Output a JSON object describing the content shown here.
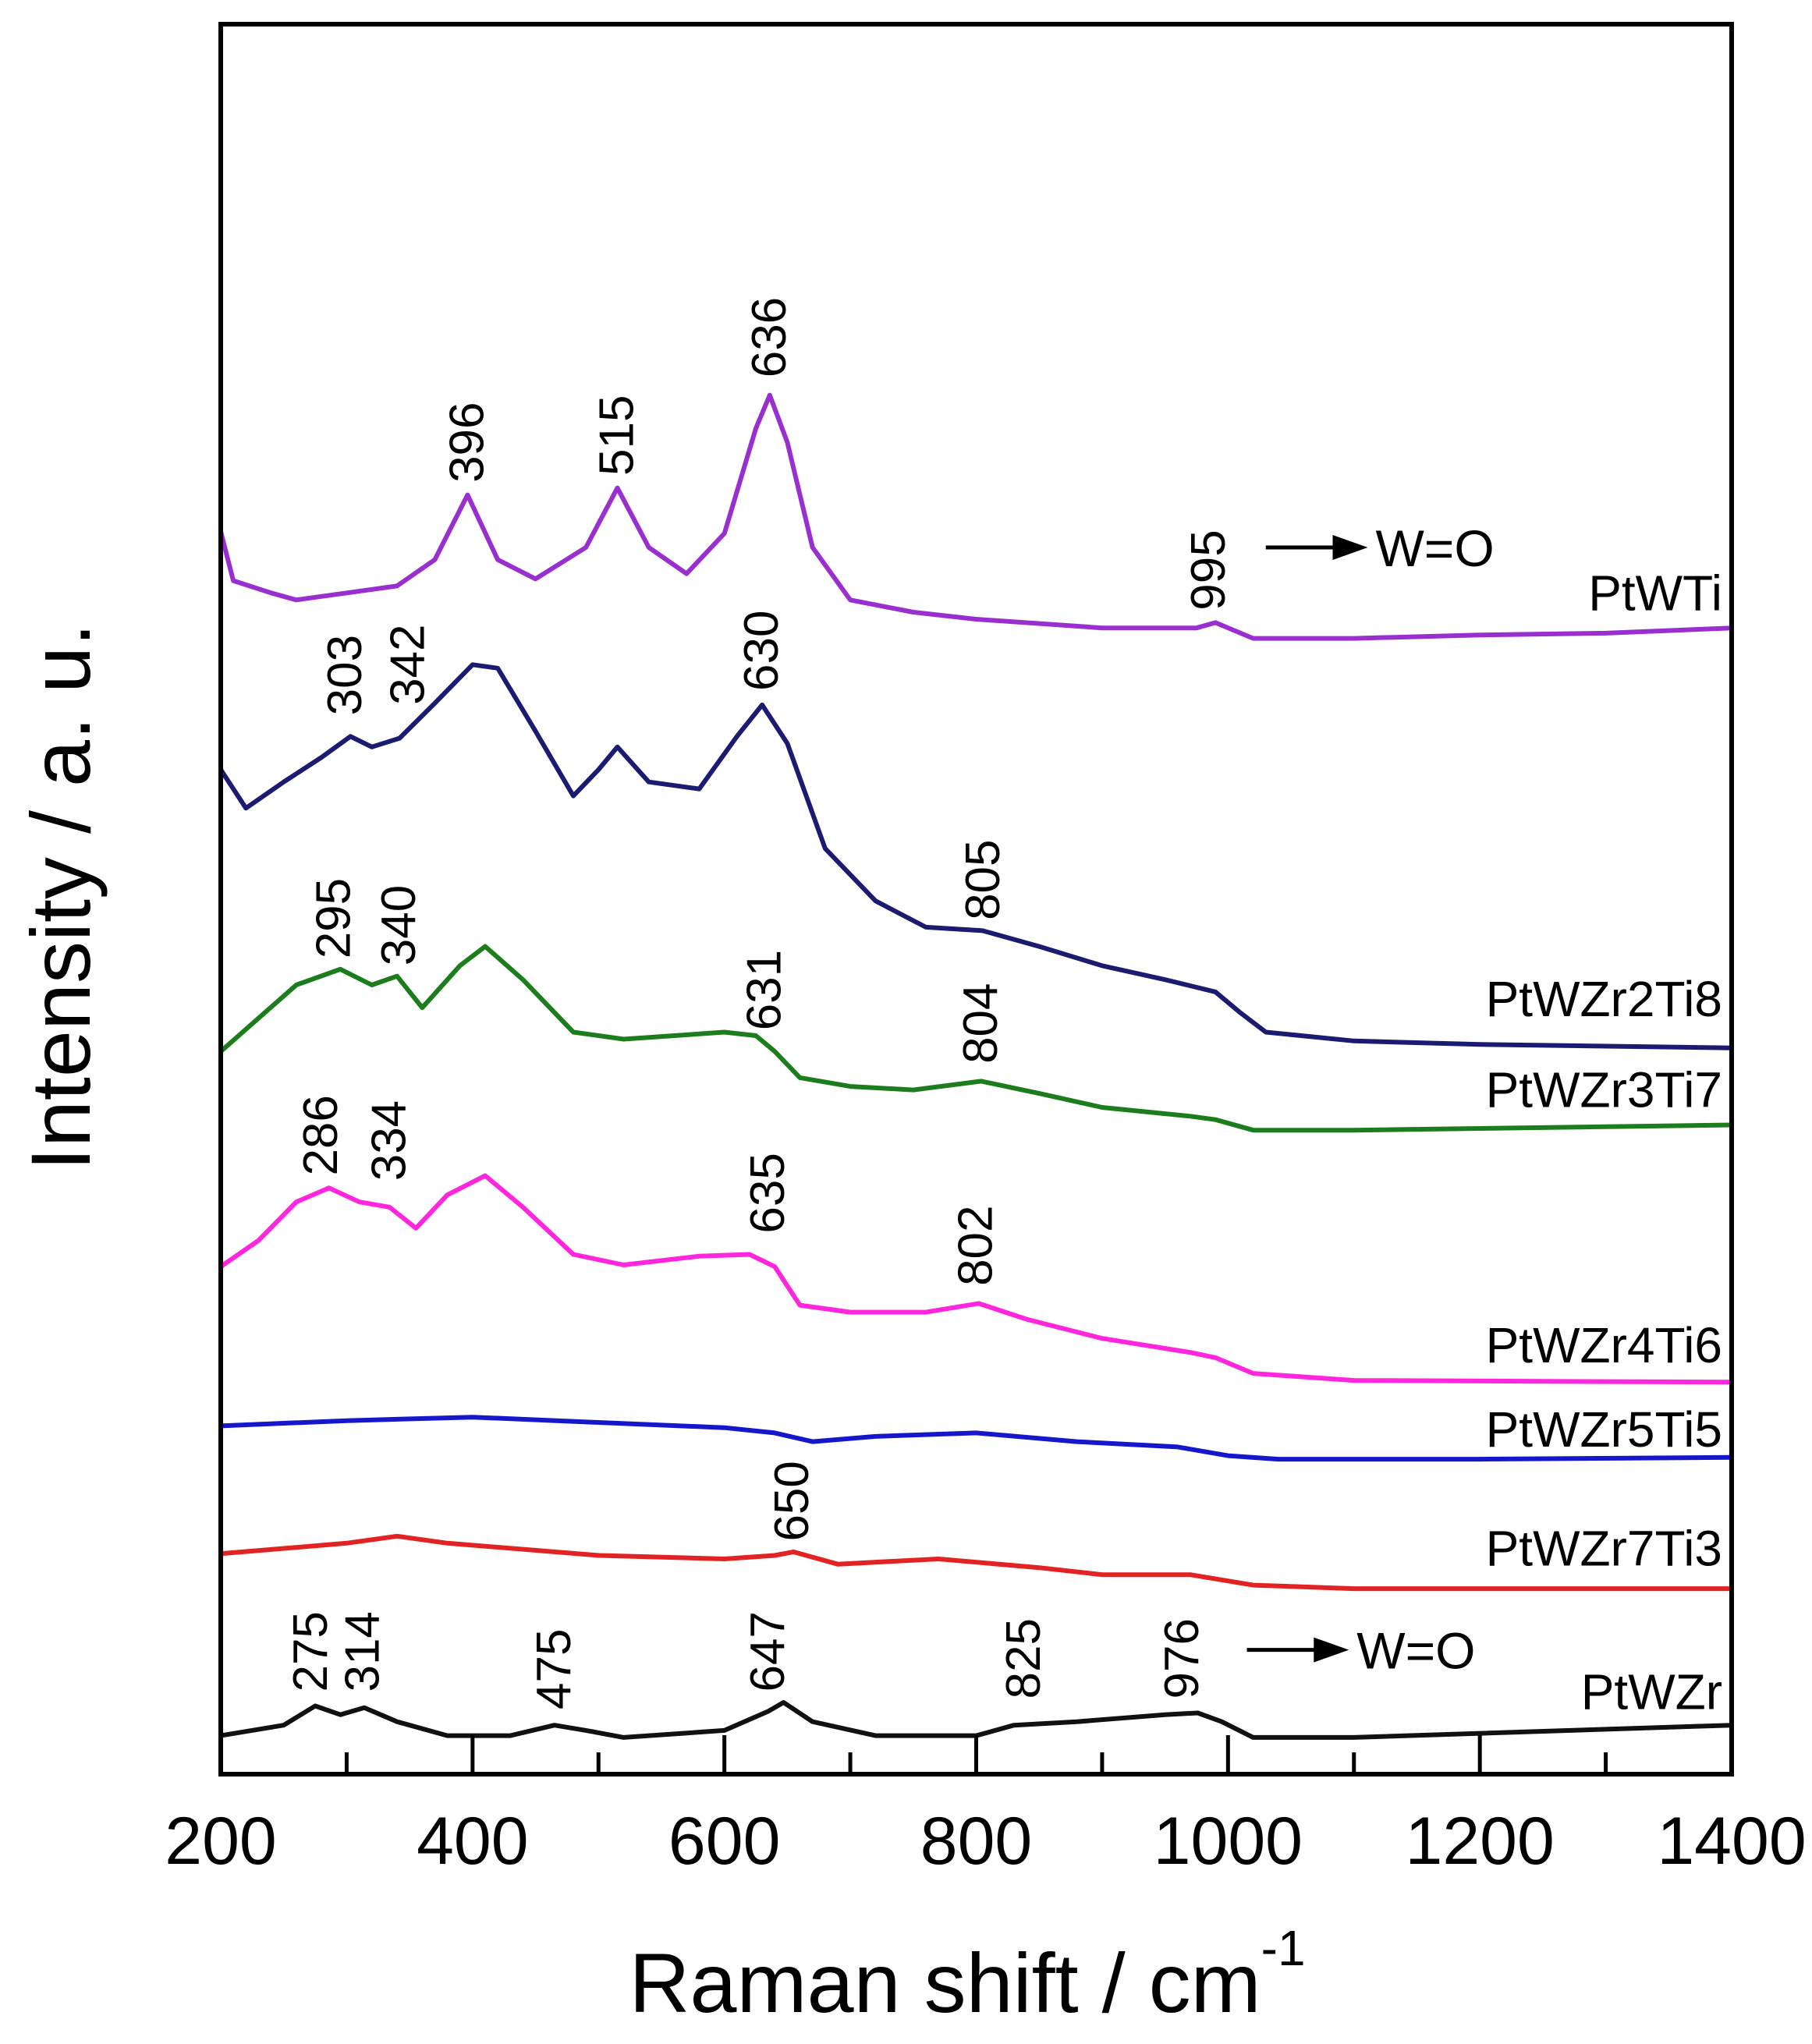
{
  "chart_data": {
    "type": "line",
    "title": "",
    "xlabel": "Raman shift / cm",
    "xlabel_superscript": "-1",
    "ylabel": "Intensity / a. u.",
    "xlim": [
      200,
      1400
    ],
    "ylim": [
      0,
      100
    ],
    "x_ticks": [
      "200",
      "400",
      "600",
      "800",
      "1000",
      "1200",
      "1400"
    ],
    "x_tick_values": [
      200,
      400,
      600,
      800,
      1000,
      1200,
      1400
    ],
    "minor_tick_step": 100,
    "grid": false,
    "series": [
      {
        "name": "PtWTi",
        "color": "#9a2fd0",
        "label_y": 67.5,
        "points": [
          [
            200,
            71
          ],
          [
            210,
            68.2
          ],
          [
            240,
            67.5
          ],
          [
            260,
            67.1
          ],
          [
            300,
            67.5
          ],
          [
            340,
            67.9
          ],
          [
            370,
            69.4
          ],
          [
            396,
            73.1
          ],
          [
            420,
            69.4
          ],
          [
            450,
            68.3
          ],
          [
            490,
            70.1
          ],
          [
            515,
            73.5
          ],
          [
            540,
            70.1
          ],
          [
            570,
            68.6
          ],
          [
            600,
            70.9
          ],
          [
            625,
            76.9
          ],
          [
            636,
            78.8
          ],
          [
            650,
            76.1
          ],
          [
            670,
            70.1
          ],
          [
            700,
            67.1
          ],
          [
            750,
            66.4
          ],
          [
            800,
            66
          ],
          [
            900,
            65.5
          ],
          [
            975,
            65.5
          ],
          [
            990,
            65.8
          ],
          [
            1020,
            64.9
          ],
          [
            1100,
            64.9
          ],
          [
            1200,
            65.1
          ],
          [
            1300,
            65.2
          ],
          [
            1400,
            65.5
          ]
        ]
      },
      {
        "name": "PtWZr2Ti8",
        "color": "#1b1b72",
        "label_y": 44.3,
        "points": [
          [
            200,
            57.4
          ],
          [
            220,
            55.2
          ],
          [
            250,
            56.7
          ],
          [
            280,
            58.1
          ],
          [
            303,
            59.3
          ],
          [
            320,
            58.7
          ],
          [
            342,
            59.2
          ],
          [
            370,
            61.2
          ],
          [
            400,
            63.4
          ],
          [
            420,
            63.2
          ],
          [
            450,
            59.6
          ],
          [
            480,
            55.9
          ],
          [
            500,
            57.4
          ],
          [
            515,
            58.7
          ],
          [
            540,
            56.7
          ],
          [
            580,
            56.3
          ],
          [
            610,
            59.3
          ],
          [
            630,
            61.1
          ],
          [
            650,
            58.9
          ],
          [
            680,
            52.9
          ],
          [
            720,
            49.9
          ],
          [
            760,
            48.4
          ],
          [
            805,
            48.2
          ],
          [
            850,
            47.3
          ],
          [
            900,
            46.2
          ],
          [
            950,
            45.4
          ],
          [
            990,
            44.7
          ],
          [
            1010,
            43.5
          ],
          [
            1030,
            42.4
          ],
          [
            1100,
            41.9
          ],
          [
            1200,
            41.7
          ],
          [
            1400,
            41.5
          ]
        ]
      },
      {
        "name": "PtWZr3Ti7",
        "color": "#1c7d1c",
        "label_y": 39.1,
        "points": [
          [
            200,
            41.3
          ],
          [
            230,
            43.2
          ],
          [
            260,
            45.1
          ],
          [
            295,
            46
          ],
          [
            320,
            45.1
          ],
          [
            340,
            45.6
          ],
          [
            360,
            43.8
          ],
          [
            390,
            46.2
          ],
          [
            410,
            47.3
          ],
          [
            440,
            45.4
          ],
          [
            480,
            42.4
          ],
          [
            520,
            42
          ],
          [
            600,
            42.4
          ],
          [
            625,
            42.2
          ],
          [
            640,
            41.3
          ],
          [
            660,
            39.8
          ],
          [
            700,
            39.3
          ],
          [
            750,
            39.1
          ],
          [
            804,
            39.6
          ],
          [
            850,
            38.9
          ],
          [
            900,
            38.1
          ],
          [
            970,
            37.6
          ],
          [
            990,
            37.4
          ],
          [
            1020,
            36.8
          ],
          [
            1100,
            36.8
          ],
          [
            1400,
            37.1
          ]
        ]
      },
      {
        "name": "PtWZr4Ti6",
        "color": "#ff26de",
        "label_y": 24.5,
        "points": [
          [
            200,
            29
          ],
          [
            230,
            30.5
          ],
          [
            260,
            32.7
          ],
          [
            286,
            33.5
          ],
          [
            310,
            32.7
          ],
          [
            334,
            32.4
          ],
          [
            355,
            31.2
          ],
          [
            380,
            33.1
          ],
          [
            410,
            34.2
          ],
          [
            440,
            32.4
          ],
          [
            480,
            29.7
          ],
          [
            520,
            29.1
          ],
          [
            580,
            29.6
          ],
          [
            620,
            29.7
          ],
          [
            640,
            29
          ],
          [
            660,
            26.8
          ],
          [
            700,
            26.4
          ],
          [
            760,
            26.4
          ],
          [
            802,
            26.9
          ],
          [
            840,
            26
          ],
          [
            900,
            24.9
          ],
          [
            970,
            24.1
          ],
          [
            990,
            23.8
          ],
          [
            1020,
            22.9
          ],
          [
            1100,
            22.5
          ],
          [
            1400,
            22.4
          ]
        ]
      },
      {
        "name": "PtWZr5Ti5",
        "color": "#1616cc",
        "label_y": 19.7,
        "points": [
          [
            200,
            19.9
          ],
          [
            300,
            20.2
          ],
          [
            400,
            20.4
          ],
          [
            500,
            20.1
          ],
          [
            600,
            19.8
          ],
          [
            640,
            19.5
          ],
          [
            670,
            19
          ],
          [
            720,
            19.3
          ],
          [
            800,
            19.5
          ],
          [
            880,
            19
          ],
          [
            960,
            18.7
          ],
          [
            1000,
            18.2
          ],
          [
            1040,
            18
          ],
          [
            1200,
            18
          ],
          [
            1400,
            18.1
          ]
        ]
      },
      {
        "name": "PtWZr7Ti3",
        "color": "#e32222",
        "label_y": 12.9,
        "points": [
          [
            200,
            12.6
          ],
          [
            300,
            13.2
          ],
          [
            340,
            13.6
          ],
          [
            380,
            13.2
          ],
          [
            500,
            12.5
          ],
          [
            600,
            12.3
          ],
          [
            640,
            12.5
          ],
          [
            655,
            12.7
          ],
          [
            690,
            12
          ],
          [
            770,
            12.3
          ],
          [
            850,
            11.8
          ],
          [
            900,
            11.4
          ],
          [
            970,
            11.4
          ],
          [
            1020,
            10.8
          ],
          [
            1100,
            10.6
          ],
          [
            1400,
            10.6
          ]
        ]
      },
      {
        "name": "PtWZr",
        "color": "#111111",
        "label_y": 4.7,
        "points": [
          [
            200,
            2.2
          ],
          [
            250,
            2.8
          ],
          [
            275,
            3.9
          ],
          [
            295,
            3.4
          ],
          [
            314,
            3.8
          ],
          [
            340,
            3
          ],
          [
            380,
            2.2
          ],
          [
            430,
            2.2
          ],
          [
            465,
            2.8
          ],
          [
            490,
            2.5
          ],
          [
            520,
            2.1
          ],
          [
            600,
            2.5
          ],
          [
            635,
            3.6
          ],
          [
            647,
            4.1
          ],
          [
            670,
            3
          ],
          [
            720,
            2.2
          ],
          [
            800,
            2.2
          ],
          [
            830,
            2.8
          ],
          [
            880,
            3
          ],
          [
            950,
            3.4
          ],
          [
            976,
            3.5
          ],
          [
            995,
            3
          ],
          [
            1020,
            2.1
          ],
          [
            1100,
            2.1
          ],
          [
            1400,
            2.8
          ]
        ]
      }
    ],
    "annotations": [
      {
        "text": "636",
        "x": 636,
        "y": 79.8
      },
      {
        "text": "515",
        "x": 515,
        "y": 74.2
      },
      {
        "text": "396",
        "x": 396,
        "y": 73.8
      },
      {
        "text": "995",
        "x": 985,
        "y": 66.5
      },
      {
        "text": "303",
        "x": 299,
        "y": 60.5
      },
      {
        "text": "342",
        "x": 349,
        "y": 61.1
      },
      {
        "text": "630",
        "x": 630,
        "y": 61.9
      },
      {
        "text": "805",
        "x": 806,
        "y": 48.8
      },
      {
        "text": "295",
        "x": 290,
        "y": 46.6
      },
      {
        "text": "340",
        "x": 342,
        "y": 46.2
      },
      {
        "text": "631",
        "x": 632,
        "y": 42.5
      },
      {
        "text": "804",
        "x": 804,
        "y": 40.6
      },
      {
        "text": "286",
        "x": 280,
        "y": 34.2
      },
      {
        "text": "334",
        "x": 334,
        "y": 33.9
      },
      {
        "text": "635",
        "x": 635,
        "y": 30.9
      },
      {
        "text": "802",
        "x": 800,
        "y": 27.9
      },
      {
        "text": "650",
        "x": 654,
        "y": 13.3
      },
      {
        "text": "275",
        "x": 272,
        "y": 4.7
      },
      {
        "text": "314",
        "x": 313,
        "y": 4.7
      },
      {
        "text": "475",
        "x": 465,
        "y": 3.7
      },
      {
        "text": "647",
        "x": 635,
        "y": 4.7
      },
      {
        "text": "825",
        "x": 838,
        "y": 4.3
      },
      {
        "text": "976",
        "x": 964,
        "y": 4.3
      }
    ],
    "arrows": [
      {
        "from_x": 1030,
        "to_x": 1111,
        "y": 70.1,
        "text": "W=O"
      },
      {
        "from_x": 1015,
        "to_x": 1096,
        "y": 7.1,
        "text": "W=O"
      }
    ]
  }
}
